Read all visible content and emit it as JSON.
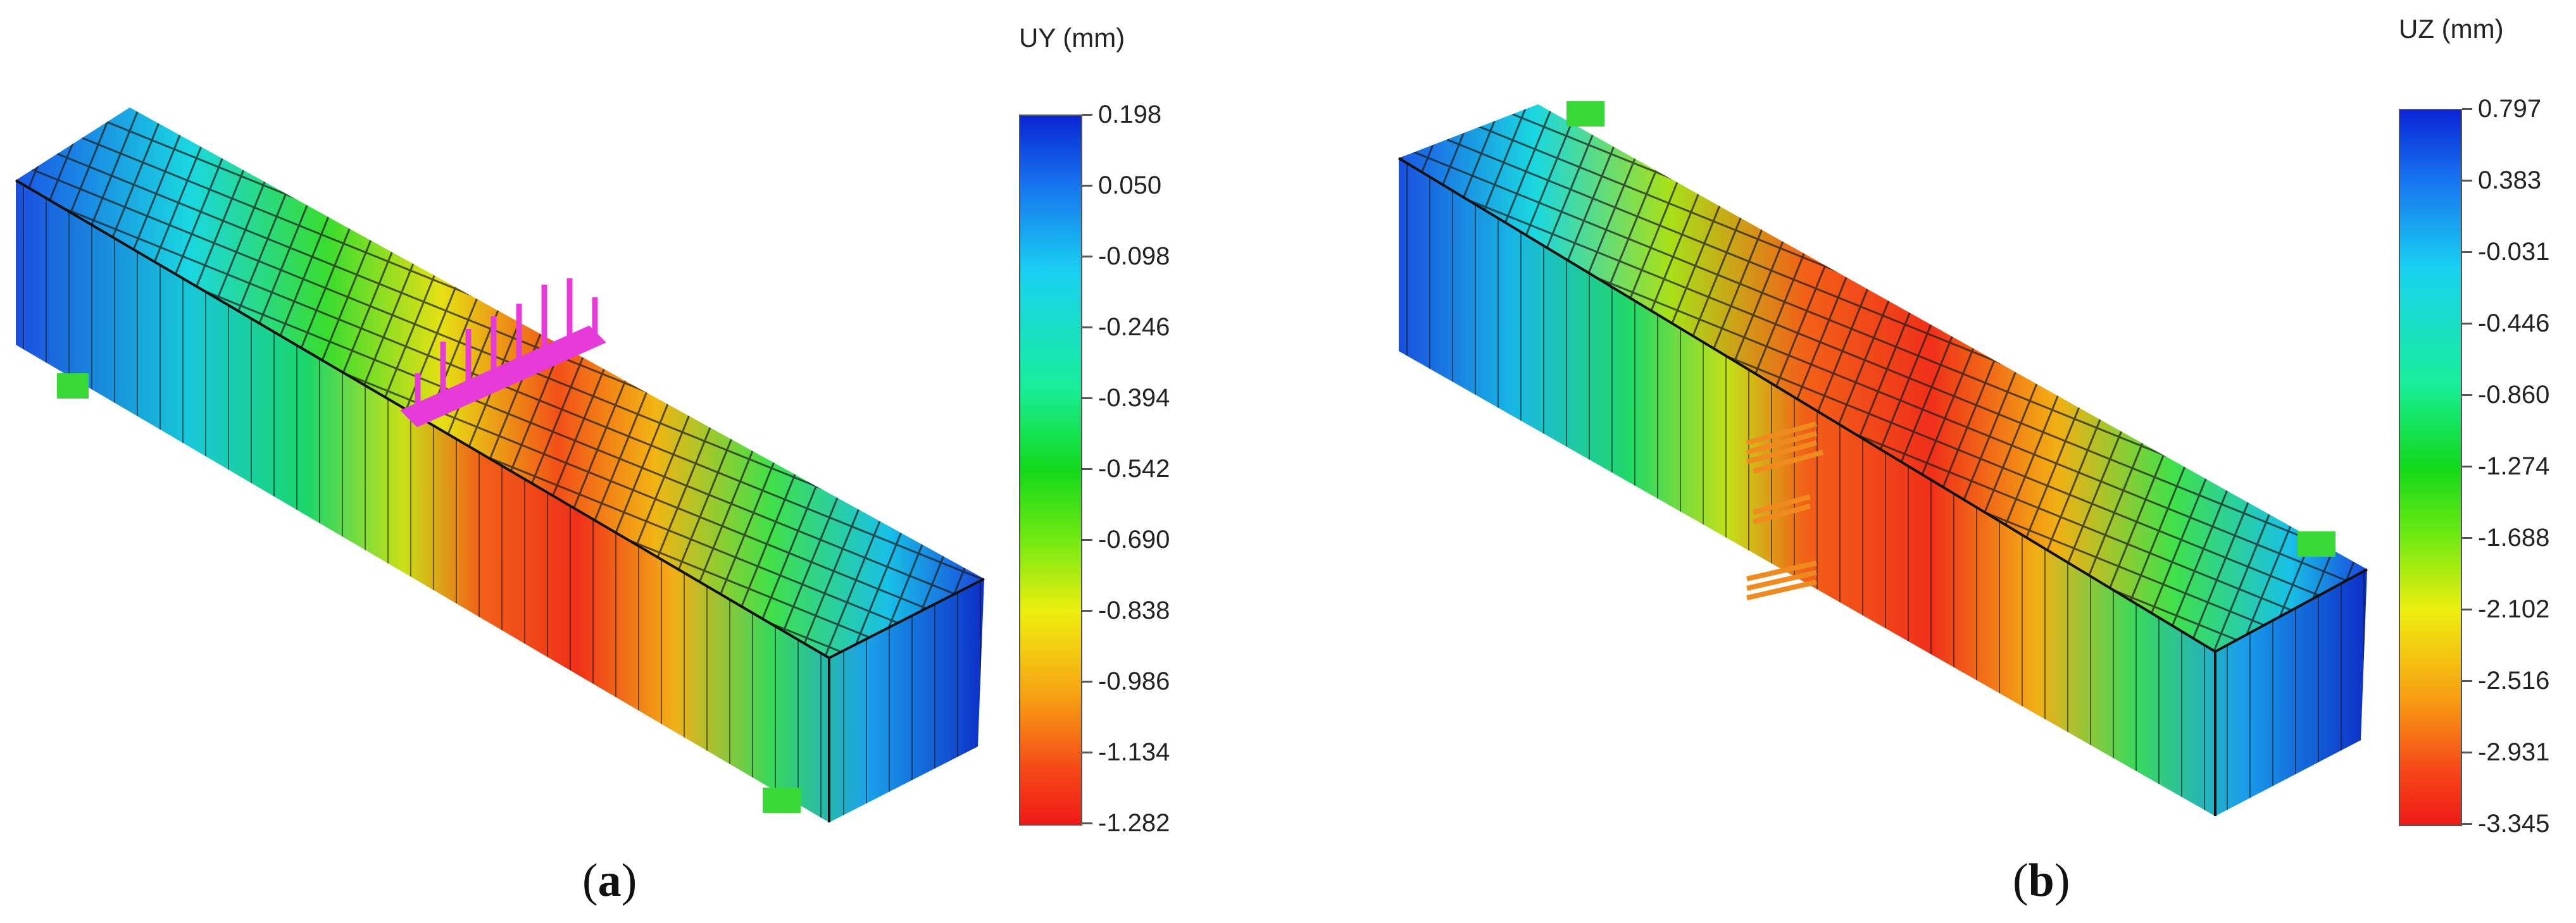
{
  "panels": [
    {
      "id": "a",
      "caption_letter": "a",
      "colorbar": {
        "title": "UY (mm)",
        "ticks": [
          "0.198",
          "0.050",
          "-0.098",
          "-0.246",
          "-0.394",
          "-0.542",
          "-0.690",
          "-0.838",
          "-0.986",
          "-1.134",
          "-1.282"
        ]
      },
      "load_marker_color": "#e63bd9",
      "support_marker_color": "#38d936"
    },
    {
      "id": "b",
      "caption_letter": "b",
      "colorbar": {
        "title": "UZ (mm)",
        "ticks": [
          "0.797",
          "0.383",
          "-0.031",
          "-0.446",
          "-0.860",
          "-1.274",
          "-1.688",
          "-2.102",
          "-2.516",
          "-2.931",
          "-3.345"
        ]
      },
      "load_marker_color": "#f08a1e",
      "support_marker_color": "#38d936"
    }
  ]
}
